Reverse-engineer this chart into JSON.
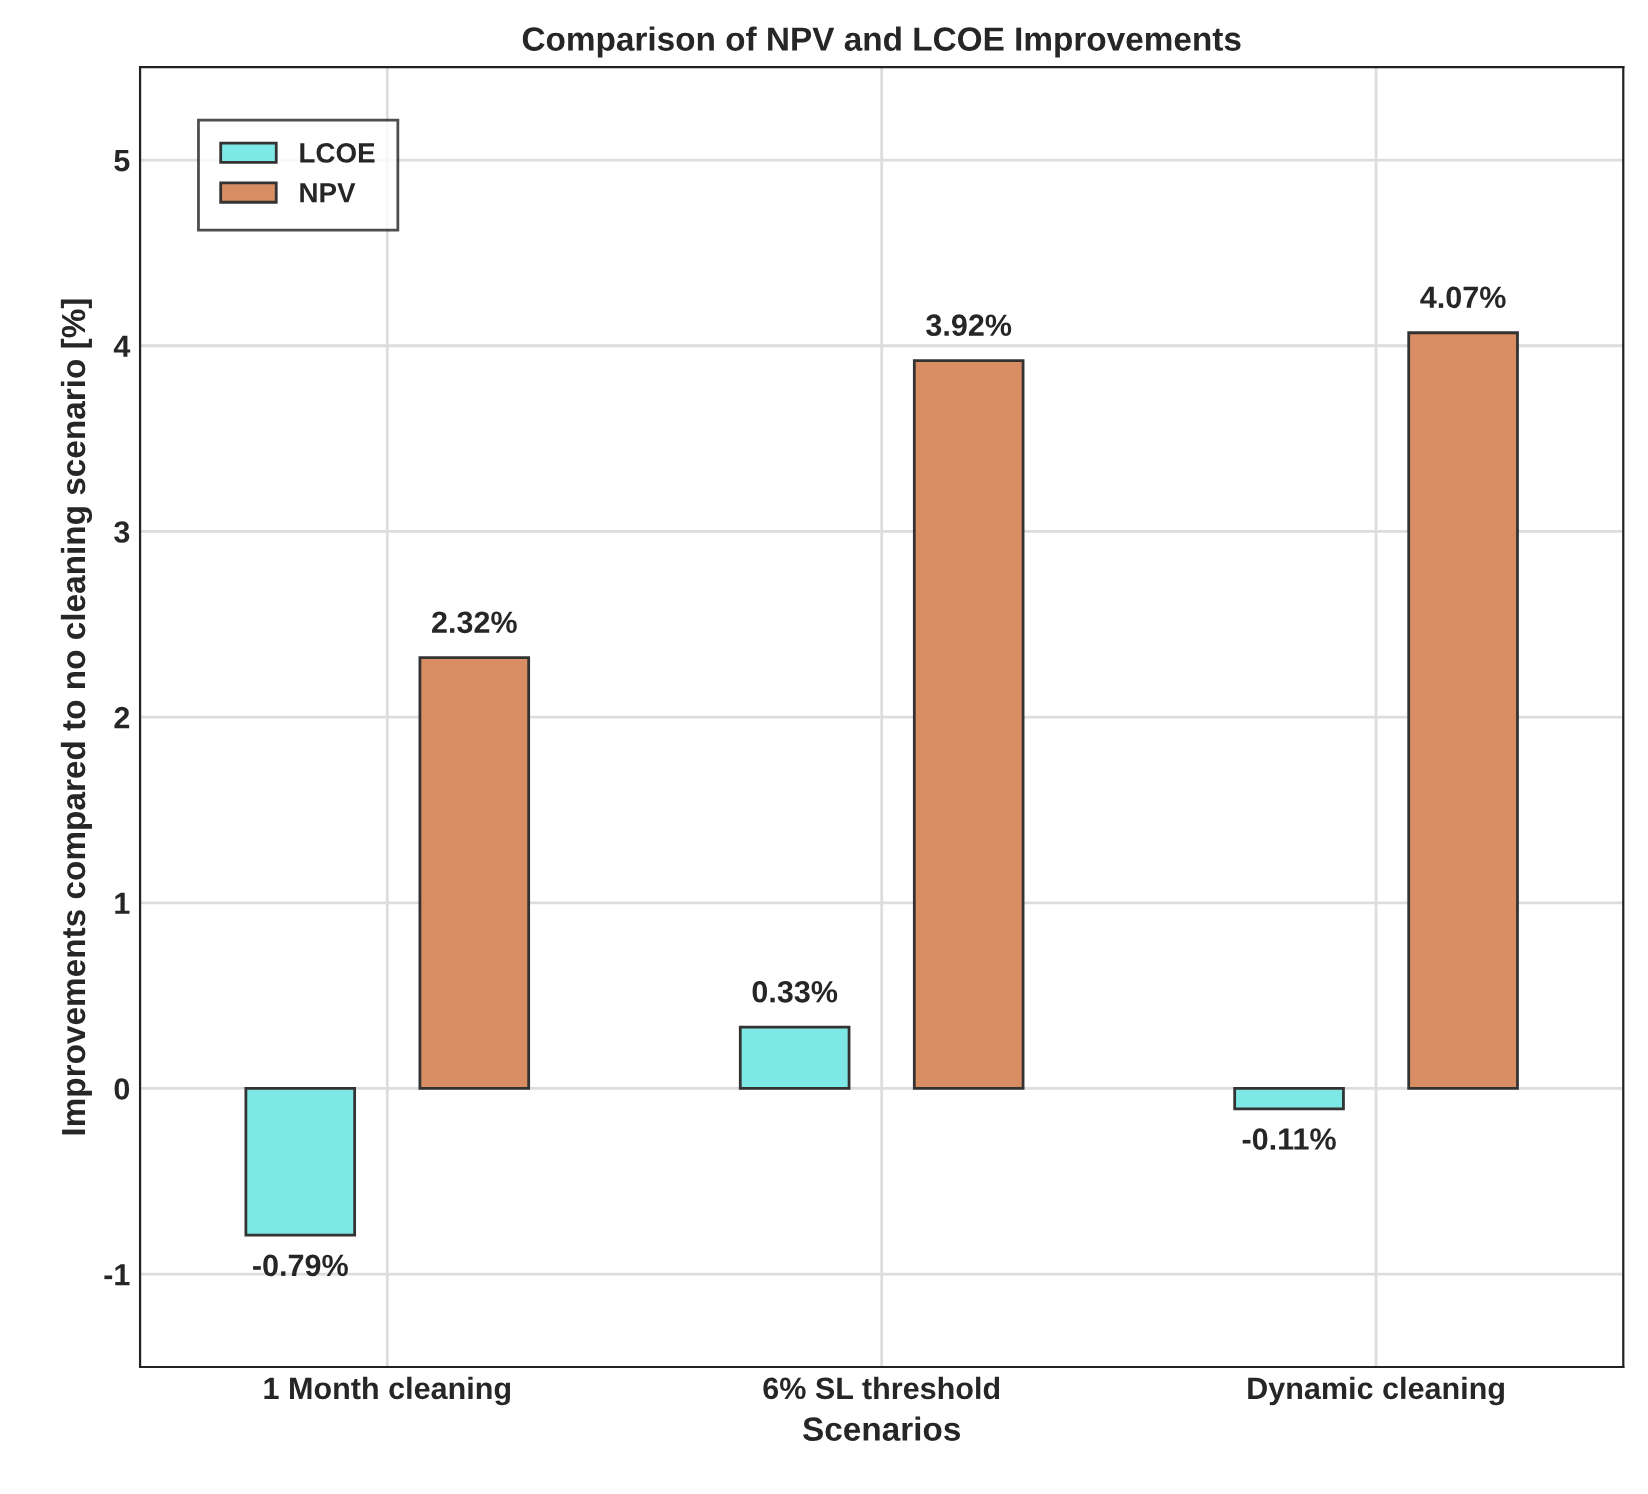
{
  "chart_data": {
    "type": "bar",
    "title": "Comparison of NPV and LCOE Improvements",
    "xlabel": "Scenarios",
    "ylabel": "Improvements compared to no cleaning scenario [%]",
    "categories": [
      "1 Month cleaning",
      "6% SL threshold",
      "Dynamic cleaning"
    ],
    "series": [
      {
        "name": "LCOE",
        "color": "#7ee8e6",
        "values": [
          -0.79,
          0.33,
          -0.11
        ],
        "value_labels": [
          "-0.79%",
          "0.33%",
          "-0.11%"
        ]
      },
      {
        "name": "NPV",
        "color": "#d98d62",
        "values": [
          2.32,
          3.92,
          4.07
        ],
        "value_labels": [
          "2.32%",
          "3.92%",
          "4.07%"
        ]
      }
    ],
    "ylim": [
      -1.5,
      5.5
    ],
    "yticks": [
      -1,
      0,
      1,
      2,
      3,
      4,
      5
    ],
    "grid": true,
    "legend": "top left"
  }
}
